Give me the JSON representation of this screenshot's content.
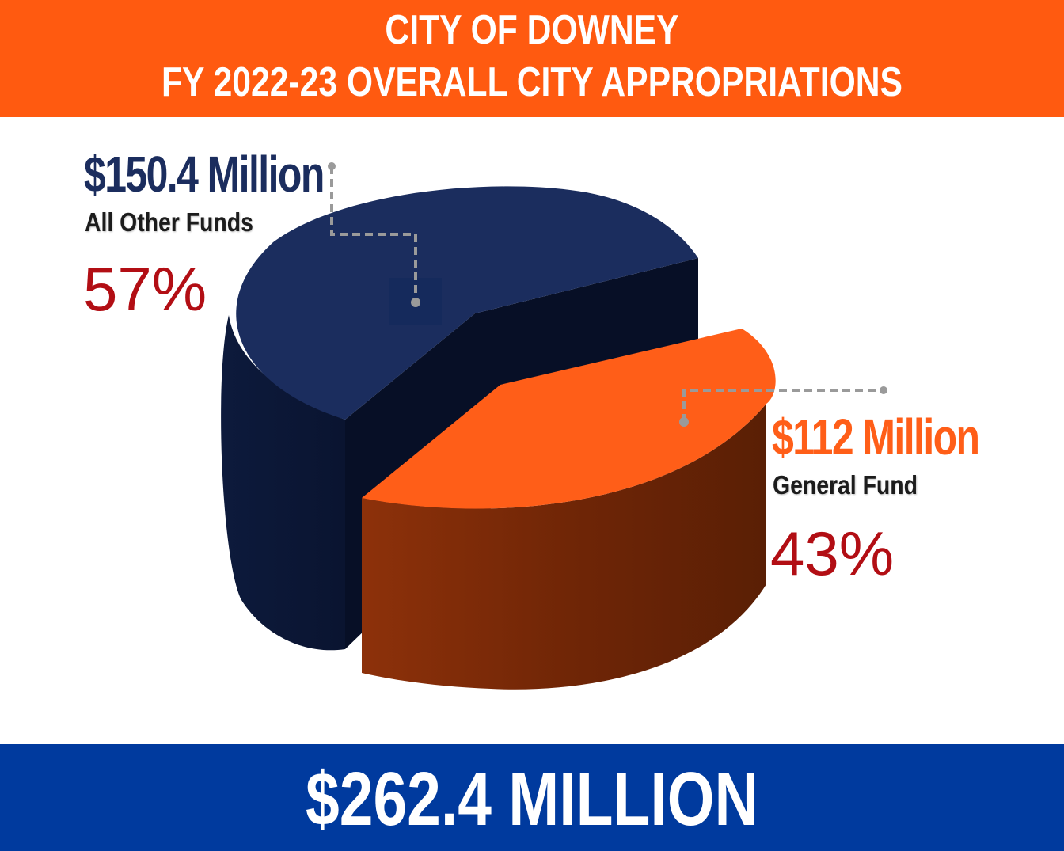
{
  "header": {
    "line1": "CITY OF DOWNEY",
    "line2": "FY 2022-23 OVERALL CITY APPROPRIATIONS"
  },
  "footer": {
    "total": "$262.4 MILLION"
  },
  "colors": {
    "header_bg": "#ff5a10",
    "footer_bg": "#003a9e",
    "other_funds": "#1b2d5e",
    "general_fund": "#ff5e18",
    "percent_text": "#b20e14"
  },
  "chart_data": {
    "type": "pie",
    "style": "3d-exploded",
    "title": "FY 2022-23 OVERALL CITY APPROPRIATIONS",
    "total_label": "$262.4 MILLION",
    "slices": [
      {
        "name": "All Other Funds",
        "amount_label": "$150.4 Million",
        "value": 150.4,
        "unit": "Million",
        "percent_label": "57%",
        "percent": 57,
        "color": "#1b2d5e"
      },
      {
        "name": "General Fund",
        "amount_label": "$112 Million",
        "value": 112,
        "unit": "Million",
        "percent_label": "43%",
        "percent": 43,
        "color": "#ff5e18"
      }
    ]
  }
}
